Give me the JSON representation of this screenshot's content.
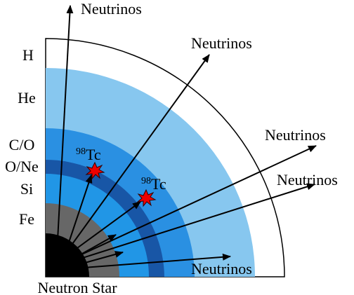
{
  "layers": [
    "H",
    "He",
    "C/O",
    "O/Ne",
    "Si",
    "Fe"
  ],
  "center_label": "Neutron Star",
  "neutrinos": [
    "Neutrinos",
    "Neutrinos",
    "Neutrinos",
    "Neutrinos",
    "Neutrinos"
  ],
  "isotopes": [
    {
      "mass": "98",
      "symbol": "Tc"
    },
    {
      "mass": "98",
      "symbol": "Tc"
    }
  ]
}
